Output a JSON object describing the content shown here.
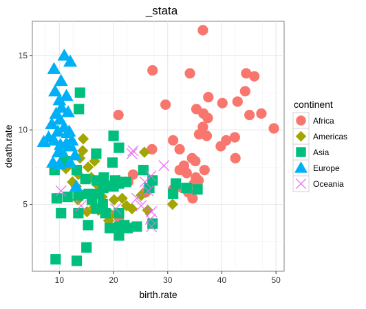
{
  "chart_data": {
    "type": "scatter",
    "title": "_stata",
    "xlabel": "birth.rate",
    "ylabel": "death.rate",
    "xlim": [
      5,
      51.5
    ],
    "ylim": [
      0.5,
      17.3
    ],
    "xticks": [
      10,
      20,
      30,
      40,
      50
    ],
    "yticks": [
      5,
      10,
      15
    ],
    "grid": true,
    "legend": {
      "title": "continent",
      "position": "right"
    },
    "colors": {
      "Africa": "#F8766D",
      "Americas": "#A3A500",
      "Asia": "#00BF7D",
      "Europe": "#00B0F6",
      "Oceania": "#E76BF3"
    },
    "shapes": {
      "Africa": "circle",
      "Americas": "diamond",
      "Asia": "square",
      "Europe": "triangle",
      "Oceania": "x"
    },
    "series": [
      {
        "name": "Africa",
        "points": [
          [
            36.5,
            16.7
          ],
          [
            27.2,
            14.0
          ],
          [
            34.1,
            13.8
          ],
          [
            44.5,
            13.8
          ],
          [
            46.0,
            13.6
          ],
          [
            37.5,
            12.2
          ],
          [
            44.3,
            12.6
          ],
          [
            20.9,
            11.0
          ],
          [
            29.6,
            11.7
          ],
          [
            35.3,
            11.4
          ],
          [
            36.6,
            11.1
          ],
          [
            37.4,
            10.8
          ],
          [
            40.1,
            11.8
          ],
          [
            42.9,
            11.9
          ],
          [
            45.1,
            11.0
          ],
          [
            47.3,
            11.1
          ],
          [
            36.5,
            10.2
          ],
          [
            35.8,
            9.7
          ],
          [
            37.2,
            9.6
          ],
          [
            32.2,
            8.7
          ],
          [
            31.0,
            9.3
          ],
          [
            40.8,
            9.3
          ],
          [
            42.4,
            9.5
          ],
          [
            39.8,
            8.9
          ],
          [
            42.5,
            8.1
          ],
          [
            49.6,
            10.1
          ],
          [
            34.5,
            8.1
          ],
          [
            35.1,
            7.9
          ],
          [
            33.5,
            7.1
          ],
          [
            35.2,
            6.8
          ],
          [
            32.2,
            7.3
          ],
          [
            34.9,
            6.4
          ],
          [
            33.8,
            5.8
          ],
          [
            34.6,
            5.4
          ],
          [
            23.6,
            7.0
          ],
          [
            27.1,
            8.7
          ],
          [
            32.7,
            6.1
          ],
          [
            25.9,
            5.8
          ],
          [
            21.0,
            4.1
          ],
          [
            22.7,
            6.5
          ],
          [
            36.8,
            7.3
          ],
          [
            35.7,
            6.6
          ],
          [
            33.0,
            7.6
          ],
          [
            31.0,
            6.0
          ]
        ]
      },
      {
        "name": "Americas",
        "points": [
          [
            14.4,
            9.4
          ],
          [
            14.3,
            8.6
          ],
          [
            13.8,
            8.1
          ],
          [
            10.6,
            7.9
          ],
          [
            11.2,
            7.4
          ],
          [
            15.3,
            7.5
          ],
          [
            13.5,
            7.0
          ],
          [
            15.9,
            6.8
          ],
          [
            18.3,
            6.6
          ],
          [
            17.0,
            6.3
          ],
          [
            13.1,
            6.2
          ],
          [
            12.4,
            6.5
          ],
          [
            17.9,
            5.5
          ],
          [
            20.1,
            5.3
          ],
          [
            21.6,
            5.4
          ],
          [
            16.4,
            4.8
          ],
          [
            18.3,
            4.5
          ],
          [
            19.6,
            4.3
          ],
          [
            19.1,
            3.9
          ],
          [
            23.4,
            4.7
          ],
          [
            22.4,
            4.9
          ],
          [
            25.1,
            5.6
          ],
          [
            26.3,
            4.6
          ],
          [
            15.1,
            4.5
          ],
          [
            17.2,
            4.6
          ],
          [
            25.7,
            8.5
          ],
          [
            13.4,
            5.3
          ],
          [
            21.0,
            6.6
          ],
          [
            16.5,
            7.9
          ],
          [
            30.9,
            5.0
          ]
        ]
      },
      {
        "name": "Asia",
        "points": [
          [
            13.8,
            12.5
          ],
          [
            13.6,
            11.4
          ],
          [
            20.0,
            9.6
          ],
          [
            21.0,
            8.8
          ],
          [
            16.8,
            8.4
          ],
          [
            19.8,
            7.8
          ],
          [
            9.1,
            7.3
          ],
          [
            11.0,
            7.9
          ],
          [
            13.2,
            7.3
          ],
          [
            14.8,
            6.7
          ],
          [
            16.9,
            6.6
          ],
          [
            18.1,
            6.1
          ],
          [
            20.0,
            6.2
          ],
          [
            20.3,
            6.6
          ],
          [
            21.0,
            6.4
          ],
          [
            18.2,
            6.8
          ],
          [
            22.3,
            6.5
          ],
          [
            25.5,
            7.3
          ],
          [
            27.2,
            6.6
          ],
          [
            31.5,
            6.4
          ],
          [
            33.5,
            6.1
          ],
          [
            35.5,
            6.0
          ],
          [
            26.6,
            6.1
          ],
          [
            17.3,
            5.7
          ],
          [
            18.0,
            5.0
          ],
          [
            9.5,
            5.4
          ],
          [
            11.5,
            5.5
          ],
          [
            13.5,
            5.6
          ],
          [
            15.4,
            5.7
          ],
          [
            16.0,
            5.3
          ],
          [
            16.8,
            4.7
          ],
          [
            21.0,
            4.4
          ],
          [
            18.5,
            4.4
          ],
          [
            10.3,
            4.4
          ],
          [
            13.5,
            4.4
          ],
          [
            15.3,
            3.6
          ],
          [
            19.3,
            3.4
          ],
          [
            21.1,
            3.5
          ],
          [
            21.0,
            2.9
          ],
          [
            22.0,
            3.6
          ],
          [
            24.3,
            3.5
          ],
          [
            27.2,
            3.7
          ],
          [
            22.6,
            3.4
          ],
          [
            15.0,
            2.1
          ],
          [
            9.3,
            1.3
          ],
          [
            13.2,
            1.2
          ],
          [
            31.0,
            5.7
          ]
        ]
      },
      {
        "name": "Europe",
        "points": [
          [
            10.9,
            15.0
          ],
          [
            12.0,
            14.6
          ],
          [
            9.0,
            14.1
          ],
          [
            10.3,
            13.3
          ],
          [
            9.2,
            12.6
          ],
          [
            10.0,
            12.0
          ],
          [
            11.3,
            12.3
          ],
          [
            9.4,
            11.1
          ],
          [
            10.4,
            11.5
          ],
          [
            11.6,
            11.2
          ],
          [
            8.6,
            10.4
          ],
          [
            10.1,
            10.7
          ],
          [
            9.7,
            9.9
          ],
          [
            10.9,
            10.2
          ],
          [
            11.8,
            9.9
          ],
          [
            12.3,
            9.3
          ],
          [
            8.0,
            9.5
          ],
          [
            7.1,
            9.2
          ],
          [
            9.0,
            9.3
          ],
          [
            10.2,
            9.0
          ],
          [
            11.3,
            9.1
          ],
          [
            12.1,
            8.9
          ],
          [
            9.8,
            8.5
          ],
          [
            12.9,
            8.3
          ],
          [
            10.0,
            7.7
          ],
          [
            12.0,
            7.8
          ],
          [
            8.8,
            7.8
          ],
          [
            13.1,
            6.2
          ],
          [
            10.4,
            8.6
          ],
          [
            11.5,
            9.8
          ]
        ]
      },
      {
        "name": "Oceania",
        "points": [
          [
            23.4,
            8.4
          ],
          [
            23.6,
            8.6
          ],
          [
            26.9,
            6.9
          ],
          [
            29.3,
            7.6
          ],
          [
            25.8,
            6.5
          ],
          [
            26.4,
            5.9
          ],
          [
            27.0,
            4.5
          ],
          [
            26.8,
            4.0
          ],
          [
            27.0,
            3.5
          ],
          [
            24.3,
            5.4
          ],
          [
            25.1,
            4.9
          ],
          [
            10.3,
            5.9
          ],
          [
            14.0,
            4.9
          ],
          [
            20.4,
            4.7
          ]
        ]
      }
    ]
  }
}
